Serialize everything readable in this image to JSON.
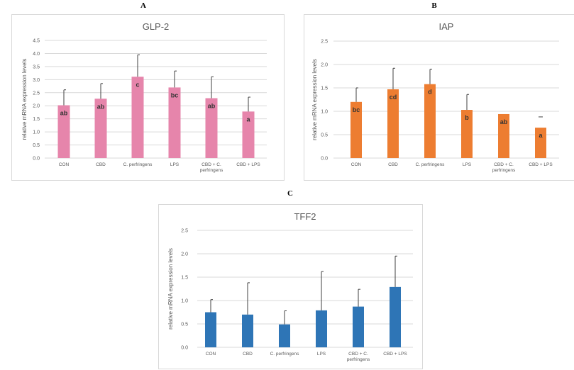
{
  "chart_data": [
    {
      "panel": "A",
      "type": "bar",
      "title": "GLP-2",
      "ylabel": "relative mRNA expression levels",
      "xlabel": "",
      "categories": [
        "CON",
        "CBD",
        "C. perfringens",
        "LPS",
        "CBD + C. perfringens",
        "CBD + LPS"
      ],
      "values": [
        2.02,
        2.27,
        3.11,
        2.7,
        2.29,
        1.78
      ],
      "error_upper": [
        2.61,
        2.85,
        3.95,
        3.33,
        3.11,
        2.33
      ],
      "significance": [
        "ab",
        "ab",
        "c",
        "bc",
        "ab",
        "a"
      ],
      "ylim": [
        0,
        4.5
      ],
      "yticks": [
        "0.0",
        "0.5",
        "1.0",
        "1.5",
        "2.0",
        "2.5",
        "3.0",
        "3.5",
        "4.0",
        "4.5"
      ],
      "grid": true,
      "color": "#e685ab"
    },
    {
      "panel": "B",
      "type": "bar",
      "title": "IAP",
      "ylabel": "relative mRNA expression levels",
      "xlabel": "",
      "categories": [
        "CON",
        "CBD",
        "C. perfringens",
        "LPS",
        "CBD + C. perfringens",
        "CBD + LPS"
      ],
      "values": [
        1.2,
        1.47,
        1.58,
        1.03,
        0.94,
        0.65
      ],
      "error_upper": [
        1.5,
        1.92,
        1.9,
        1.36,
        null,
        0.88
      ],
      "significance": [
        "bc",
        "cd",
        "d",
        "b",
        "ab",
        "a"
      ],
      "ylim": [
        0,
        2.5
      ],
      "yticks": [
        "0.0",
        "0.5",
        "1.0",
        "1.5",
        "2.0",
        "2.5"
      ],
      "grid": true,
      "color": "#ed7d31"
    },
    {
      "panel": "C",
      "type": "bar",
      "title": "TFF2",
      "ylabel": "relative mRNA expression levels",
      "xlabel": "",
      "categories": [
        "CON",
        "CBD",
        "C. perfringens",
        "LPS",
        "CBD + C. perfringens",
        "CBD + LPS"
      ],
      "values": [
        0.75,
        0.7,
        0.49,
        0.79,
        0.87,
        1.29
      ],
      "error_upper": [
        1.02,
        1.38,
        0.78,
        1.62,
        1.24,
        1.95
      ],
      "significance": [],
      "ylim": [
        0,
        2.5
      ],
      "yticks": [
        "0.0",
        "0.5",
        "1.0",
        "1.5",
        "2.0",
        "2.5"
      ],
      "grid": true,
      "color": "#2e75b6"
    }
  ]
}
